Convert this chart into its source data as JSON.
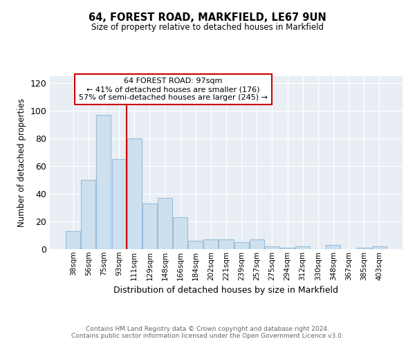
{
  "title": "64, FOREST ROAD, MARKFIELD, LE67 9UN",
  "subtitle": "Size of property relative to detached houses in Markfield",
  "xlabel": "Distribution of detached houses by size in Markfield",
  "ylabel": "Number of detached properties",
  "bar_labels": [
    "38sqm",
    "56sqm",
    "75sqm",
    "93sqm",
    "111sqm",
    "129sqm",
    "148sqm",
    "166sqm",
    "184sqm",
    "202sqm",
    "221sqm",
    "239sqm",
    "257sqm",
    "275sqm",
    "294sqm",
    "312sqm",
    "330sqm",
    "348sqm",
    "367sqm",
    "385sqm",
    "403sqm"
  ],
  "bar_values": [
    13,
    50,
    97,
    65,
    80,
    33,
    37,
    23,
    6,
    7,
    7,
    5,
    7,
    2,
    1,
    2,
    0,
    3,
    0,
    1,
    2
  ],
  "bar_color": "#cce0f0",
  "bar_edge_color": "#9bbcd8",
  "vline_x": 3.5,
  "vline_color": "#cc0000",
  "annotation_text": "64 FOREST ROAD: 97sqm\n← 41% of detached houses are smaller (176)\n57% of semi-detached houses are larger (245) →",
  "annotation_box_color": "white",
  "annotation_box_edge": "#cc0000",
  "ylim": [
    0,
    125
  ],
  "yticks": [
    0,
    20,
    40,
    60,
    80,
    100,
    120
  ],
  "background_color": "#e8eef4",
  "grid_color": "white",
  "footer": "Contains HM Land Registry data © Crown copyright and database right 2024.\nContains public sector information licensed under the Open Government Licence v3.0."
}
